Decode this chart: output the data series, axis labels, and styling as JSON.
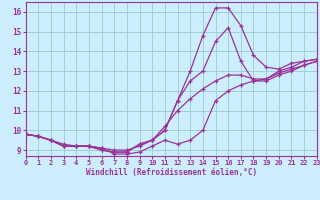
{
  "xlabel": "Windchill (Refroidissement éolien,°C)",
  "xlim": [
    0,
    23
  ],
  "ylim": [
    8.7,
    16.5
  ],
  "xticks": [
    0,
    1,
    2,
    3,
    4,
    5,
    6,
    7,
    8,
    9,
    10,
    11,
    12,
    13,
    14,
    15,
    16,
    17,
    18,
    19,
    20,
    21,
    22,
    23
  ],
  "yticks": [
    9,
    10,
    11,
    12,
    13,
    14,
    15,
    16
  ],
  "bg_color": "#cceeff",
  "line_color": "#993399",
  "grid_color": "#99cccc",
  "lines": [
    {
      "x": [
        0,
        1,
        2,
        3,
        4,
        5,
        6,
        7,
        8,
        9,
        10,
        11,
        12,
        13,
        14,
        15,
        16,
        17,
        18,
        19,
        20,
        21,
        22,
        23
      ],
      "y": [
        9.8,
        9.7,
        9.5,
        9.2,
        9.2,
        9.2,
        9.0,
        8.9,
        8.9,
        9.3,
        9.5,
        10.0,
        11.5,
        13.0,
        14.8,
        16.2,
        16.2,
        15.3,
        13.8,
        13.2,
        13.1,
        13.4,
        13.5,
        13.6
      ]
    },
    {
      "x": [
        0,
        1,
        2,
        3,
        4,
        5,
        6,
        7,
        8,
        9,
        10,
        11,
        12,
        13,
        14,
        15,
        16,
        17,
        18,
        19,
        20,
        21,
        22,
        23
      ],
      "y": [
        9.8,
        9.7,
        9.5,
        9.2,
        9.2,
        9.2,
        9.0,
        8.9,
        8.9,
        9.3,
        9.5,
        10.0,
        11.5,
        12.5,
        13.0,
        14.5,
        15.2,
        13.5,
        12.5,
        12.5,
        12.8,
        13.0,
        13.3,
        13.5
      ]
    },
    {
      "x": [
        0,
        1,
        2,
        3,
        4,
        5,
        6,
        7,
        8,
        9,
        10,
        11,
        12,
        13,
        14,
        15,
        16,
        17,
        18,
        19,
        20,
        21,
        22,
        23
      ],
      "y": [
        9.8,
        9.7,
        9.5,
        9.3,
        9.2,
        9.2,
        9.1,
        9.0,
        9.0,
        9.2,
        9.5,
        10.2,
        11.0,
        11.6,
        12.1,
        12.5,
        12.8,
        12.8,
        12.6,
        12.6,
        12.9,
        13.1,
        13.3,
        13.5
      ]
    },
    {
      "x": [
        0,
        1,
        2,
        3,
        4,
        5,
        6,
        7,
        8,
        9,
        10,
        11,
        12,
        13,
        14,
        15,
        16,
        17,
        18,
        19,
        20,
        21,
        22,
        23
      ],
      "y": [
        9.8,
        9.7,
        9.5,
        9.2,
        9.2,
        9.2,
        9.1,
        8.8,
        8.8,
        8.9,
        9.2,
        9.5,
        9.3,
        9.5,
        10.0,
        11.5,
        12.0,
        12.3,
        12.5,
        12.6,
        13.0,
        13.2,
        13.5,
        13.6
      ]
    }
  ]
}
